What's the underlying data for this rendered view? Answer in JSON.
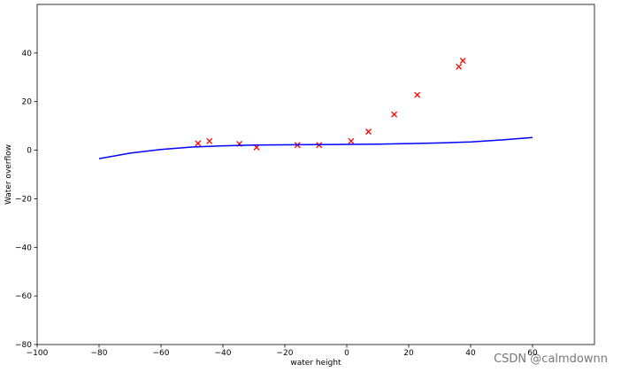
{
  "chart_data": {
    "type": "scatter",
    "xlabel": "water height",
    "ylabel": "Water overflow",
    "xlim": [
      -100,
      80
    ],
    "ylim": [
      -80,
      60
    ],
    "xticks": [
      {
        "value": -100,
        "label": "−100"
      },
      {
        "value": -80,
        "label": "−80"
      },
      {
        "value": -60,
        "label": "−60"
      },
      {
        "value": -40,
        "label": "−40"
      },
      {
        "value": -20,
        "label": "−20"
      },
      0,
      20,
      40,
      60
    ],
    "yticks": [
      {
        "value": -80,
        "label": "−80"
      },
      {
        "value": -60,
        "label": "−60"
      },
      {
        "value": -40,
        "label": "−40"
      },
      {
        "value": -20,
        "label": "−20"
      },
      0,
      20,
      40
    ],
    "series": [
      {
        "kind": "scatter",
        "color": "#ff0000",
        "x": [
          -15.94,
          -29.15,
          36.19,
          37.49,
          -48.06,
          -8.94,
          15.31,
          -34.71,
          1.39,
          -44.38,
          7.01,
          22.76
        ],
        "values": [
          2.13,
          1.17,
          34.36,
          36.84,
          2.81,
          2.12,
          14.71,
          2.61,
          3.74,
          3.73,
          7.63,
          22.75
        ]
      },
      {
        "kind": "line",
        "color": "#0000ff",
        "x": [
          -80,
          -70,
          -60,
          -50,
          -40,
          -30,
          -20,
          -10,
          0,
          10,
          20,
          30,
          40,
          50,
          60
        ],
        "values": [
          -3.5,
          -1.2,
          0.3,
          1.3,
          1.8,
          2.1,
          2.2,
          2.3,
          2.4,
          2.5,
          2.7,
          3.0,
          3.4,
          4.2,
          5.2
        ]
      }
    ],
    "watermark": "CSDN @calmdownn"
  }
}
